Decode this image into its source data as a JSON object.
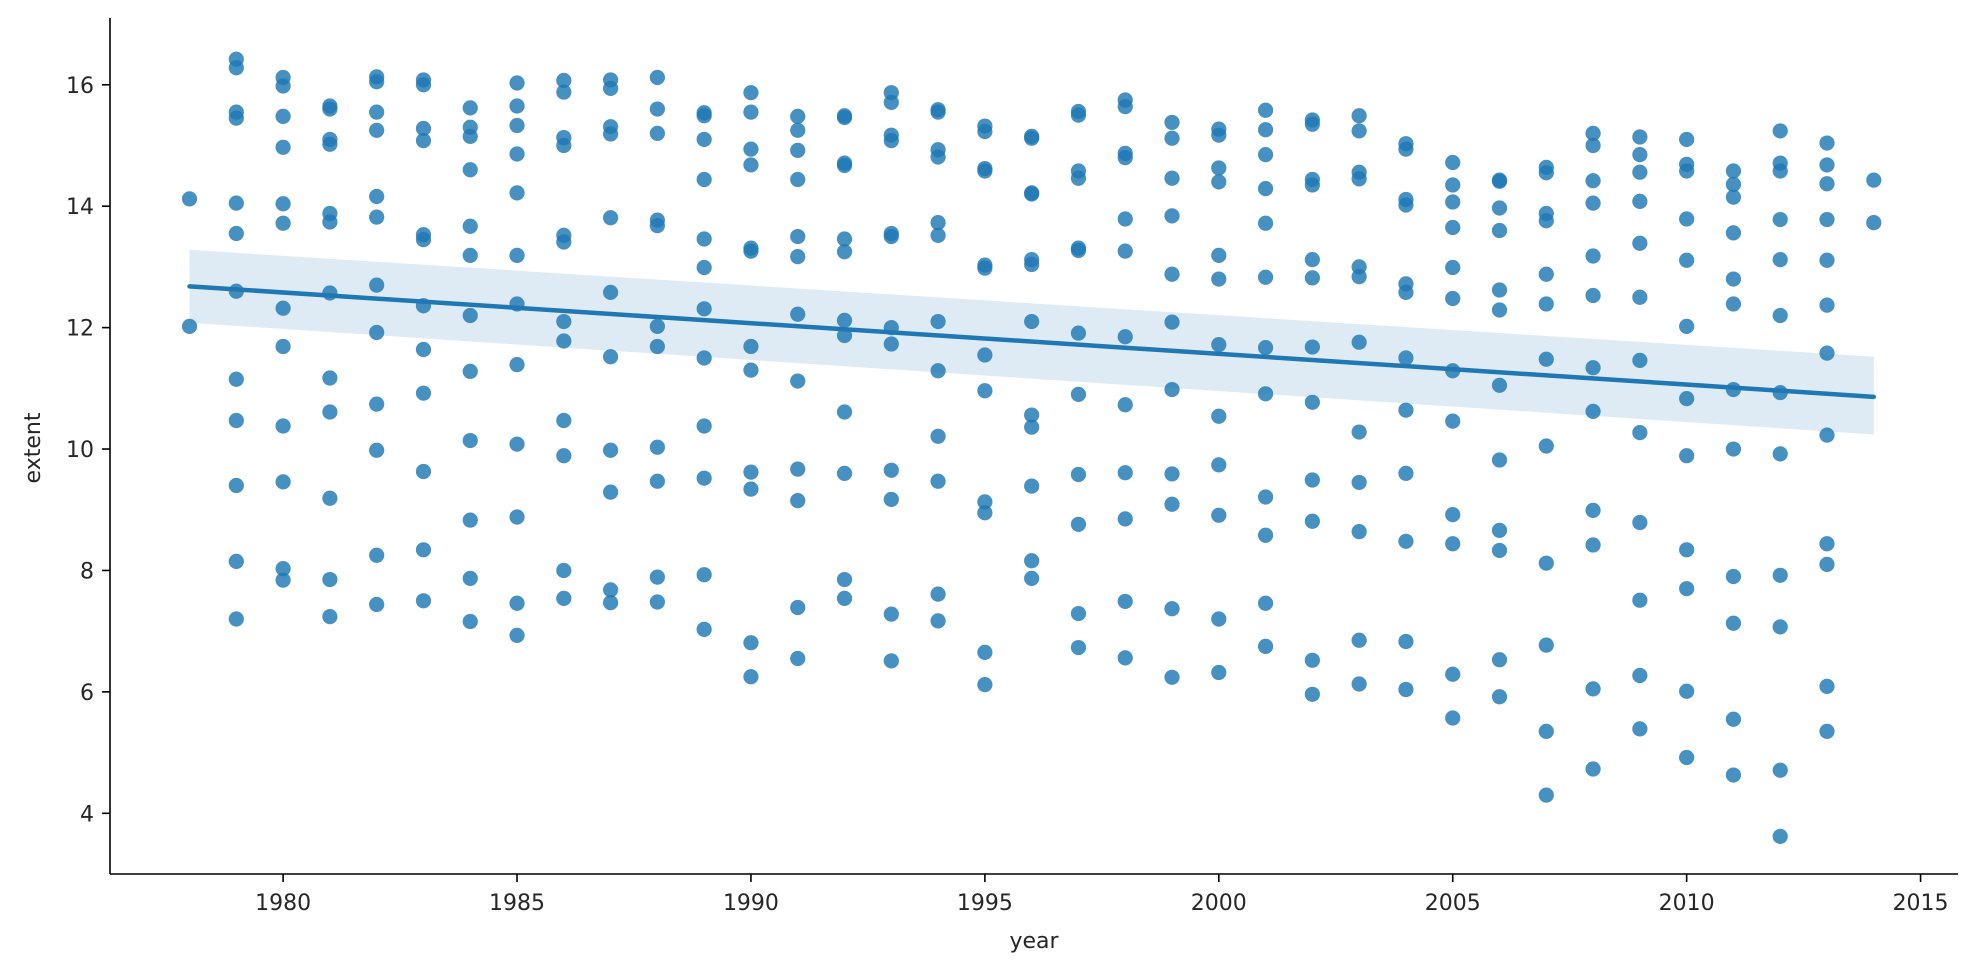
{
  "chart_data": {
    "type": "scatter",
    "title": "",
    "xlabel": "year",
    "ylabel": "extent",
    "xlim": [
      1976.3,
      2015.8
    ],
    "ylim": [
      3.0,
      17.1
    ],
    "xticks": [
      1980,
      1985,
      1990,
      1995,
      2000,
      2005,
      2010,
      2015
    ],
    "yticks": [
      4,
      6,
      8,
      10,
      12,
      14,
      16
    ],
    "grid": false,
    "legend": "none",
    "colors": {
      "points": "#1f77b4",
      "line": "#1f77b4",
      "band": "#1f77b4"
    },
    "regression": {
      "x": [
        1978,
        2014
      ],
      "y": [
        12.68,
        10.86
      ],
      "ci_lower": [
        12.08,
        10.24
      ],
      "ci_upper": [
        13.28,
        11.52
      ]
    },
    "points": [
      [
        1978,
        14.12
      ],
      [
        1978,
        12.02
      ],
      [
        1979,
        16.42
      ],
      [
        1979,
        16.28
      ],
      [
        1979,
        15.55
      ],
      [
        1979,
        15.45
      ],
      [
        1979,
        14.05
      ],
      [
        1979,
        13.55
      ],
      [
        1979,
        12.6
      ],
      [
        1979,
        11.15
      ],
      [
        1979,
        10.47
      ],
      [
        1979,
        9.4
      ],
      [
        1979,
        8.15
      ],
      [
        1979,
        7.2
      ],
      [
        1980,
        16.12
      ],
      [
        1980,
        15.98
      ],
      [
        1980,
        15.48
      ],
      [
        1980,
        14.97
      ],
      [
        1980,
        14.04
      ],
      [
        1980,
        13.72
      ],
      [
        1980,
        12.32
      ],
      [
        1980,
        11.69
      ],
      [
        1980,
        10.38
      ],
      [
        1980,
        9.46
      ],
      [
        1980,
        8.03
      ],
      [
        1980,
        7.84
      ],
      [
        1981,
        15.65
      ],
      [
        1981,
        15.6
      ],
      [
        1981,
        15.1
      ],
      [
        1981,
        15.02
      ],
      [
        1981,
        13.88
      ],
      [
        1981,
        13.74
      ],
      [
        1981,
        12.57
      ],
      [
        1981,
        11.17
      ],
      [
        1981,
        10.61
      ],
      [
        1981,
        9.19
      ],
      [
        1981,
        7.85
      ],
      [
        1981,
        7.24
      ],
      [
        1982,
        16.13
      ],
      [
        1982,
        16.05
      ],
      [
        1982,
        15.55
      ],
      [
        1982,
        15.25
      ],
      [
        1982,
        14.16
      ],
      [
        1982,
        13.82
      ],
      [
        1982,
        12.7
      ],
      [
        1982,
        11.92
      ],
      [
        1982,
        10.74
      ],
      [
        1982,
        9.98
      ],
      [
        1982,
        8.25
      ],
      [
        1982,
        7.44
      ],
      [
        1983,
        16.08
      ],
      [
        1983,
        16.0
      ],
      [
        1983,
        15.28
      ],
      [
        1983,
        15.08
      ],
      [
        1983,
        13.53
      ],
      [
        1983,
        13.45
      ],
      [
        1983,
        12.36
      ],
      [
        1983,
        11.64
      ],
      [
        1983,
        10.92
      ],
      [
        1983,
        9.63
      ],
      [
        1983,
        8.34
      ],
      [
        1983,
        7.5
      ],
      [
        1984,
        15.62
      ],
      [
        1984,
        15.3
      ],
      [
        1984,
        15.15
      ],
      [
        1984,
        14.6
      ],
      [
        1984,
        13.67
      ],
      [
        1984,
        13.19
      ],
      [
        1984,
        12.2
      ],
      [
        1984,
        11.28
      ],
      [
        1984,
        10.14
      ],
      [
        1984,
        8.83
      ],
      [
        1984,
        7.87
      ],
      [
        1984,
        7.16
      ],
      [
        1985,
        16.03
      ],
      [
        1985,
        15.65
      ],
      [
        1985,
        15.33
      ],
      [
        1985,
        14.86
      ],
      [
        1985,
        14.22
      ],
      [
        1985,
        13.19
      ],
      [
        1985,
        12.39
      ],
      [
        1985,
        11.39
      ],
      [
        1985,
        10.08
      ],
      [
        1985,
        8.88
      ],
      [
        1985,
        7.46
      ],
      [
        1985,
        6.93
      ],
      [
        1986,
        16.07
      ],
      [
        1986,
        15.88
      ],
      [
        1986,
        15.13
      ],
      [
        1986,
        15.0
      ],
      [
        1986,
        13.52
      ],
      [
        1986,
        13.41
      ],
      [
        1986,
        12.1
      ],
      [
        1986,
        11.78
      ],
      [
        1986,
        10.47
      ],
      [
        1986,
        9.89
      ],
      [
        1986,
        8.0
      ],
      [
        1986,
        7.54
      ],
      [
        1987,
        16.08
      ],
      [
        1987,
        15.94
      ],
      [
        1987,
        15.31
      ],
      [
        1987,
        15.19
      ],
      [
        1987,
        13.81
      ],
      [
        1987,
        12.58
      ],
      [
        1987,
        11.52
      ],
      [
        1987,
        9.98
      ],
      [
        1987,
        9.29
      ],
      [
        1987,
        7.68
      ],
      [
        1987,
        7.47
      ],
      [
        1988,
        16.12
      ],
      [
        1988,
        15.6
      ],
      [
        1988,
        15.2
      ],
      [
        1988,
        13.77
      ],
      [
        1988,
        13.68
      ],
      [
        1988,
        12.02
      ],
      [
        1988,
        11.69
      ],
      [
        1988,
        10.03
      ],
      [
        1988,
        9.47
      ],
      [
        1988,
        7.89
      ],
      [
        1988,
        7.48
      ],
      [
        1989,
        15.54
      ],
      [
        1989,
        15.49
      ],
      [
        1989,
        15.1
      ],
      [
        1989,
        14.44
      ],
      [
        1989,
        13.46
      ],
      [
        1989,
        12.99
      ],
      [
        1989,
        12.31
      ],
      [
        1989,
        11.5
      ],
      [
        1989,
        10.38
      ],
      [
        1989,
        9.52
      ],
      [
        1989,
        7.93
      ],
      [
        1989,
        7.03
      ],
      [
        1990,
        15.87
      ],
      [
        1990,
        15.55
      ],
      [
        1990,
        14.94
      ],
      [
        1990,
        14.68
      ],
      [
        1990,
        13.31
      ],
      [
        1990,
        13.26
      ],
      [
        1990,
        11.69
      ],
      [
        1990,
        11.3
      ],
      [
        1990,
        9.62
      ],
      [
        1990,
        9.34
      ],
      [
        1990,
        6.81
      ],
      [
        1990,
        6.25
      ],
      [
        1991,
        15.48
      ],
      [
        1991,
        15.25
      ],
      [
        1991,
        14.92
      ],
      [
        1991,
        14.44
      ],
      [
        1991,
        13.5
      ],
      [
        1991,
        13.17
      ],
      [
        1991,
        12.22
      ],
      [
        1991,
        11.12
      ],
      [
        1991,
        9.67
      ],
      [
        1991,
        9.15
      ],
      [
        1991,
        7.39
      ],
      [
        1991,
        6.55
      ],
      [
        1992,
        15.49
      ],
      [
        1992,
        15.46
      ],
      [
        1992,
        14.71
      ],
      [
        1992,
        14.67
      ],
      [
        1992,
        13.46
      ],
      [
        1992,
        13.25
      ],
      [
        1992,
        12.12
      ],
      [
        1992,
        11.87
      ],
      [
        1992,
        10.61
      ],
      [
        1992,
        9.6
      ],
      [
        1992,
        7.85
      ],
      [
        1992,
        7.54
      ],
      [
        1993,
        15.87
      ],
      [
        1993,
        15.71
      ],
      [
        1993,
        15.17
      ],
      [
        1993,
        15.08
      ],
      [
        1993,
        13.55
      ],
      [
        1993,
        13.5
      ],
      [
        1993,
        12.0
      ],
      [
        1993,
        11.73
      ],
      [
        1993,
        9.65
      ],
      [
        1993,
        9.17
      ],
      [
        1993,
        7.28
      ],
      [
        1993,
        6.51
      ],
      [
        1994,
        15.59
      ],
      [
        1994,
        15.55
      ],
      [
        1994,
        14.93
      ],
      [
        1994,
        14.81
      ],
      [
        1994,
        13.73
      ],
      [
        1994,
        13.52
      ],
      [
        1994,
        12.1
      ],
      [
        1994,
        11.29
      ],
      [
        1994,
        10.21
      ],
      [
        1994,
        9.47
      ],
      [
        1994,
        7.61
      ],
      [
        1994,
        7.17
      ],
      [
        1995,
        15.32
      ],
      [
        1995,
        15.23
      ],
      [
        1995,
        14.62
      ],
      [
        1995,
        14.58
      ],
      [
        1995,
        13.03
      ],
      [
        1995,
        12.98
      ],
      [
        1995,
        11.55
      ],
      [
        1995,
        10.96
      ],
      [
        1995,
        9.13
      ],
      [
        1995,
        8.95
      ],
      [
        1995,
        6.65
      ],
      [
        1995,
        6.12
      ],
      [
        1996,
        15.15
      ],
      [
        1996,
        15.12
      ],
      [
        1996,
        14.22
      ],
      [
        1996,
        14.2
      ],
      [
        1996,
        13.12
      ],
      [
        1996,
        13.04
      ],
      [
        1996,
        12.1
      ],
      [
        1996,
        10.56
      ],
      [
        1996,
        10.36
      ],
      [
        1996,
        9.39
      ],
      [
        1996,
        8.16
      ],
      [
        1996,
        7.87
      ],
      [
        1997,
        15.56
      ],
      [
        1997,
        15.5
      ],
      [
        1997,
        14.58
      ],
      [
        1997,
        14.46
      ],
      [
        1997,
        13.31
      ],
      [
        1997,
        13.27
      ],
      [
        1997,
        11.91
      ],
      [
        1997,
        10.9
      ],
      [
        1997,
        9.58
      ],
      [
        1997,
        8.76
      ],
      [
        1997,
        7.29
      ],
      [
        1997,
        6.73
      ],
      [
        1998,
        15.75
      ],
      [
        1998,
        15.64
      ],
      [
        1998,
        14.87
      ],
      [
        1998,
        14.8
      ],
      [
        1998,
        13.79
      ],
      [
        1998,
        13.26
      ],
      [
        1998,
        11.85
      ],
      [
        1998,
        10.73
      ],
      [
        1998,
        9.61
      ],
      [
        1998,
        8.85
      ],
      [
        1998,
        7.49
      ],
      [
        1998,
        6.56
      ],
      [
        1999,
        15.38
      ],
      [
        1999,
        15.12
      ],
      [
        1999,
        14.46
      ],
      [
        1999,
        13.84
      ],
      [
        1999,
        12.88
      ],
      [
        1999,
        12.09
      ],
      [
        1999,
        10.98
      ],
      [
        1999,
        9.59
      ],
      [
        1999,
        9.09
      ],
      [
        1999,
        7.37
      ],
      [
        1999,
        6.24
      ],
      [
        2000,
        15.27
      ],
      [
        2000,
        15.17
      ],
      [
        2000,
        14.63
      ],
      [
        2000,
        14.4
      ],
      [
        2000,
        13.19
      ],
      [
        2000,
        12.8
      ],
      [
        2000,
        11.72
      ],
      [
        2000,
        10.54
      ],
      [
        2000,
        9.74
      ],
      [
        2000,
        8.91
      ],
      [
        2000,
        7.2
      ],
      [
        2000,
        6.32
      ],
      [
        2001,
        15.58
      ],
      [
        2001,
        15.26
      ],
      [
        2001,
        14.85
      ],
      [
        2001,
        14.29
      ],
      [
        2001,
        13.72
      ],
      [
        2001,
        12.83
      ],
      [
        2001,
        11.67
      ],
      [
        2001,
        10.91
      ],
      [
        2001,
        9.21
      ],
      [
        2001,
        8.58
      ],
      [
        2001,
        7.46
      ],
      [
        2001,
        6.75
      ],
      [
        2002,
        15.42
      ],
      [
        2002,
        15.35
      ],
      [
        2002,
        14.44
      ],
      [
        2002,
        14.35
      ],
      [
        2002,
        13.12
      ],
      [
        2002,
        12.82
      ],
      [
        2002,
        11.68
      ],
      [
        2002,
        10.77
      ],
      [
        2002,
        9.49
      ],
      [
        2002,
        8.81
      ],
      [
        2002,
        6.52
      ],
      [
        2002,
        5.96
      ],
      [
        2003,
        15.49
      ],
      [
        2003,
        15.24
      ],
      [
        2003,
        14.56
      ],
      [
        2003,
        14.45
      ],
      [
        2003,
        13.0
      ],
      [
        2003,
        12.84
      ],
      [
        2003,
        11.76
      ],
      [
        2003,
        10.28
      ],
      [
        2003,
        9.45
      ],
      [
        2003,
        8.64
      ],
      [
        2003,
        6.85
      ],
      [
        2003,
        6.13
      ],
      [
        2004,
        15.03
      ],
      [
        2004,
        14.94
      ],
      [
        2004,
        14.11
      ],
      [
        2004,
        14.02
      ],
      [
        2004,
        12.72
      ],
      [
        2004,
        12.58
      ],
      [
        2004,
        11.5
      ],
      [
        2004,
        10.64
      ],
      [
        2004,
        9.6
      ],
      [
        2004,
        8.48
      ],
      [
        2004,
        6.83
      ],
      [
        2004,
        6.04
      ],
      [
        2005,
        14.72
      ],
      [
        2005,
        14.35
      ],
      [
        2005,
        14.07
      ],
      [
        2005,
        13.65
      ],
      [
        2005,
        12.99
      ],
      [
        2005,
        12.48
      ],
      [
        2005,
        11.29
      ],
      [
        2005,
        10.46
      ],
      [
        2005,
        8.92
      ],
      [
        2005,
        8.44
      ],
      [
        2005,
        6.29
      ],
      [
        2005,
        5.57
      ],
      [
        2006,
        14.43
      ],
      [
        2006,
        14.41
      ],
      [
        2006,
        13.97
      ],
      [
        2006,
        13.6
      ],
      [
        2006,
        12.62
      ],
      [
        2006,
        12.29
      ],
      [
        2006,
        11.05
      ],
      [
        2006,
        9.82
      ],
      [
        2006,
        8.66
      ],
      [
        2006,
        8.33
      ],
      [
        2006,
        6.53
      ],
      [
        2006,
        5.92
      ],
      [
        2007,
        14.64
      ],
      [
        2007,
        14.55
      ],
      [
        2007,
        13.88
      ],
      [
        2007,
        13.76
      ],
      [
        2007,
        12.88
      ],
      [
        2007,
        12.39
      ],
      [
        2007,
        11.48
      ],
      [
        2007,
        10.05
      ],
      [
        2007,
        8.12
      ],
      [
        2007,
        6.77
      ],
      [
        2007,
        5.35
      ],
      [
        2007,
        4.3
      ],
      [
        2008,
        15.2
      ],
      [
        2008,
        15.0
      ],
      [
        2008,
        14.42
      ],
      [
        2008,
        14.05
      ],
      [
        2008,
        13.18
      ],
      [
        2008,
        12.53
      ],
      [
        2008,
        11.34
      ],
      [
        2008,
        10.62
      ],
      [
        2008,
        8.99
      ],
      [
        2008,
        8.42
      ],
      [
        2008,
        6.05
      ],
      [
        2008,
        4.73
      ],
      [
        2009,
        15.14
      ],
      [
        2009,
        14.85
      ],
      [
        2009,
        14.56
      ],
      [
        2009,
        14.08
      ],
      [
        2009,
        13.39
      ],
      [
        2009,
        12.5
      ],
      [
        2009,
        11.46
      ],
      [
        2009,
        10.27
      ],
      [
        2009,
        8.79
      ],
      [
        2009,
        7.51
      ],
      [
        2009,
        6.27
      ],
      [
        2009,
        5.39
      ],
      [
        2010,
        15.1
      ],
      [
        2010,
        14.69
      ],
      [
        2010,
        14.58
      ],
      [
        2010,
        13.79
      ],
      [
        2010,
        13.11
      ],
      [
        2010,
        12.02
      ],
      [
        2010,
        10.83
      ],
      [
        2010,
        9.89
      ],
      [
        2010,
        8.34
      ],
      [
        2010,
        7.7
      ],
      [
        2010,
        6.01
      ],
      [
        2010,
        4.92
      ],
      [
        2011,
        14.58
      ],
      [
        2011,
        14.36
      ],
      [
        2011,
        14.15
      ],
      [
        2011,
        13.56
      ],
      [
        2011,
        12.8
      ],
      [
        2011,
        12.39
      ],
      [
        2011,
        10.98
      ],
      [
        2011,
        10.0
      ],
      [
        2011,
        7.9
      ],
      [
        2011,
        7.13
      ],
      [
        2011,
        5.55
      ],
      [
        2011,
        4.63
      ],
      [
        2012,
        15.24
      ],
      [
        2012,
        14.71
      ],
      [
        2012,
        14.58
      ],
      [
        2012,
        13.78
      ],
      [
        2012,
        13.12
      ],
      [
        2012,
        12.2
      ],
      [
        2012,
        10.93
      ],
      [
        2012,
        9.92
      ],
      [
        2012,
        7.92
      ],
      [
        2012,
        7.07
      ],
      [
        2012,
        4.71
      ],
      [
        2012,
        3.62
      ],
      [
        2013,
        15.04
      ],
      [
        2013,
        14.68
      ],
      [
        2013,
        14.37
      ],
      [
        2013,
        13.78
      ],
      [
        2013,
        13.11
      ],
      [
        2013,
        12.37
      ],
      [
        2013,
        11.58
      ],
      [
        2013,
        10.23
      ],
      [
        2013,
        8.44
      ],
      [
        2013,
        8.1
      ],
      [
        2013,
        6.09
      ],
      [
        2013,
        5.35
      ],
      [
        2014,
        14.43
      ],
      [
        2014,
        13.73
      ]
    ]
  }
}
